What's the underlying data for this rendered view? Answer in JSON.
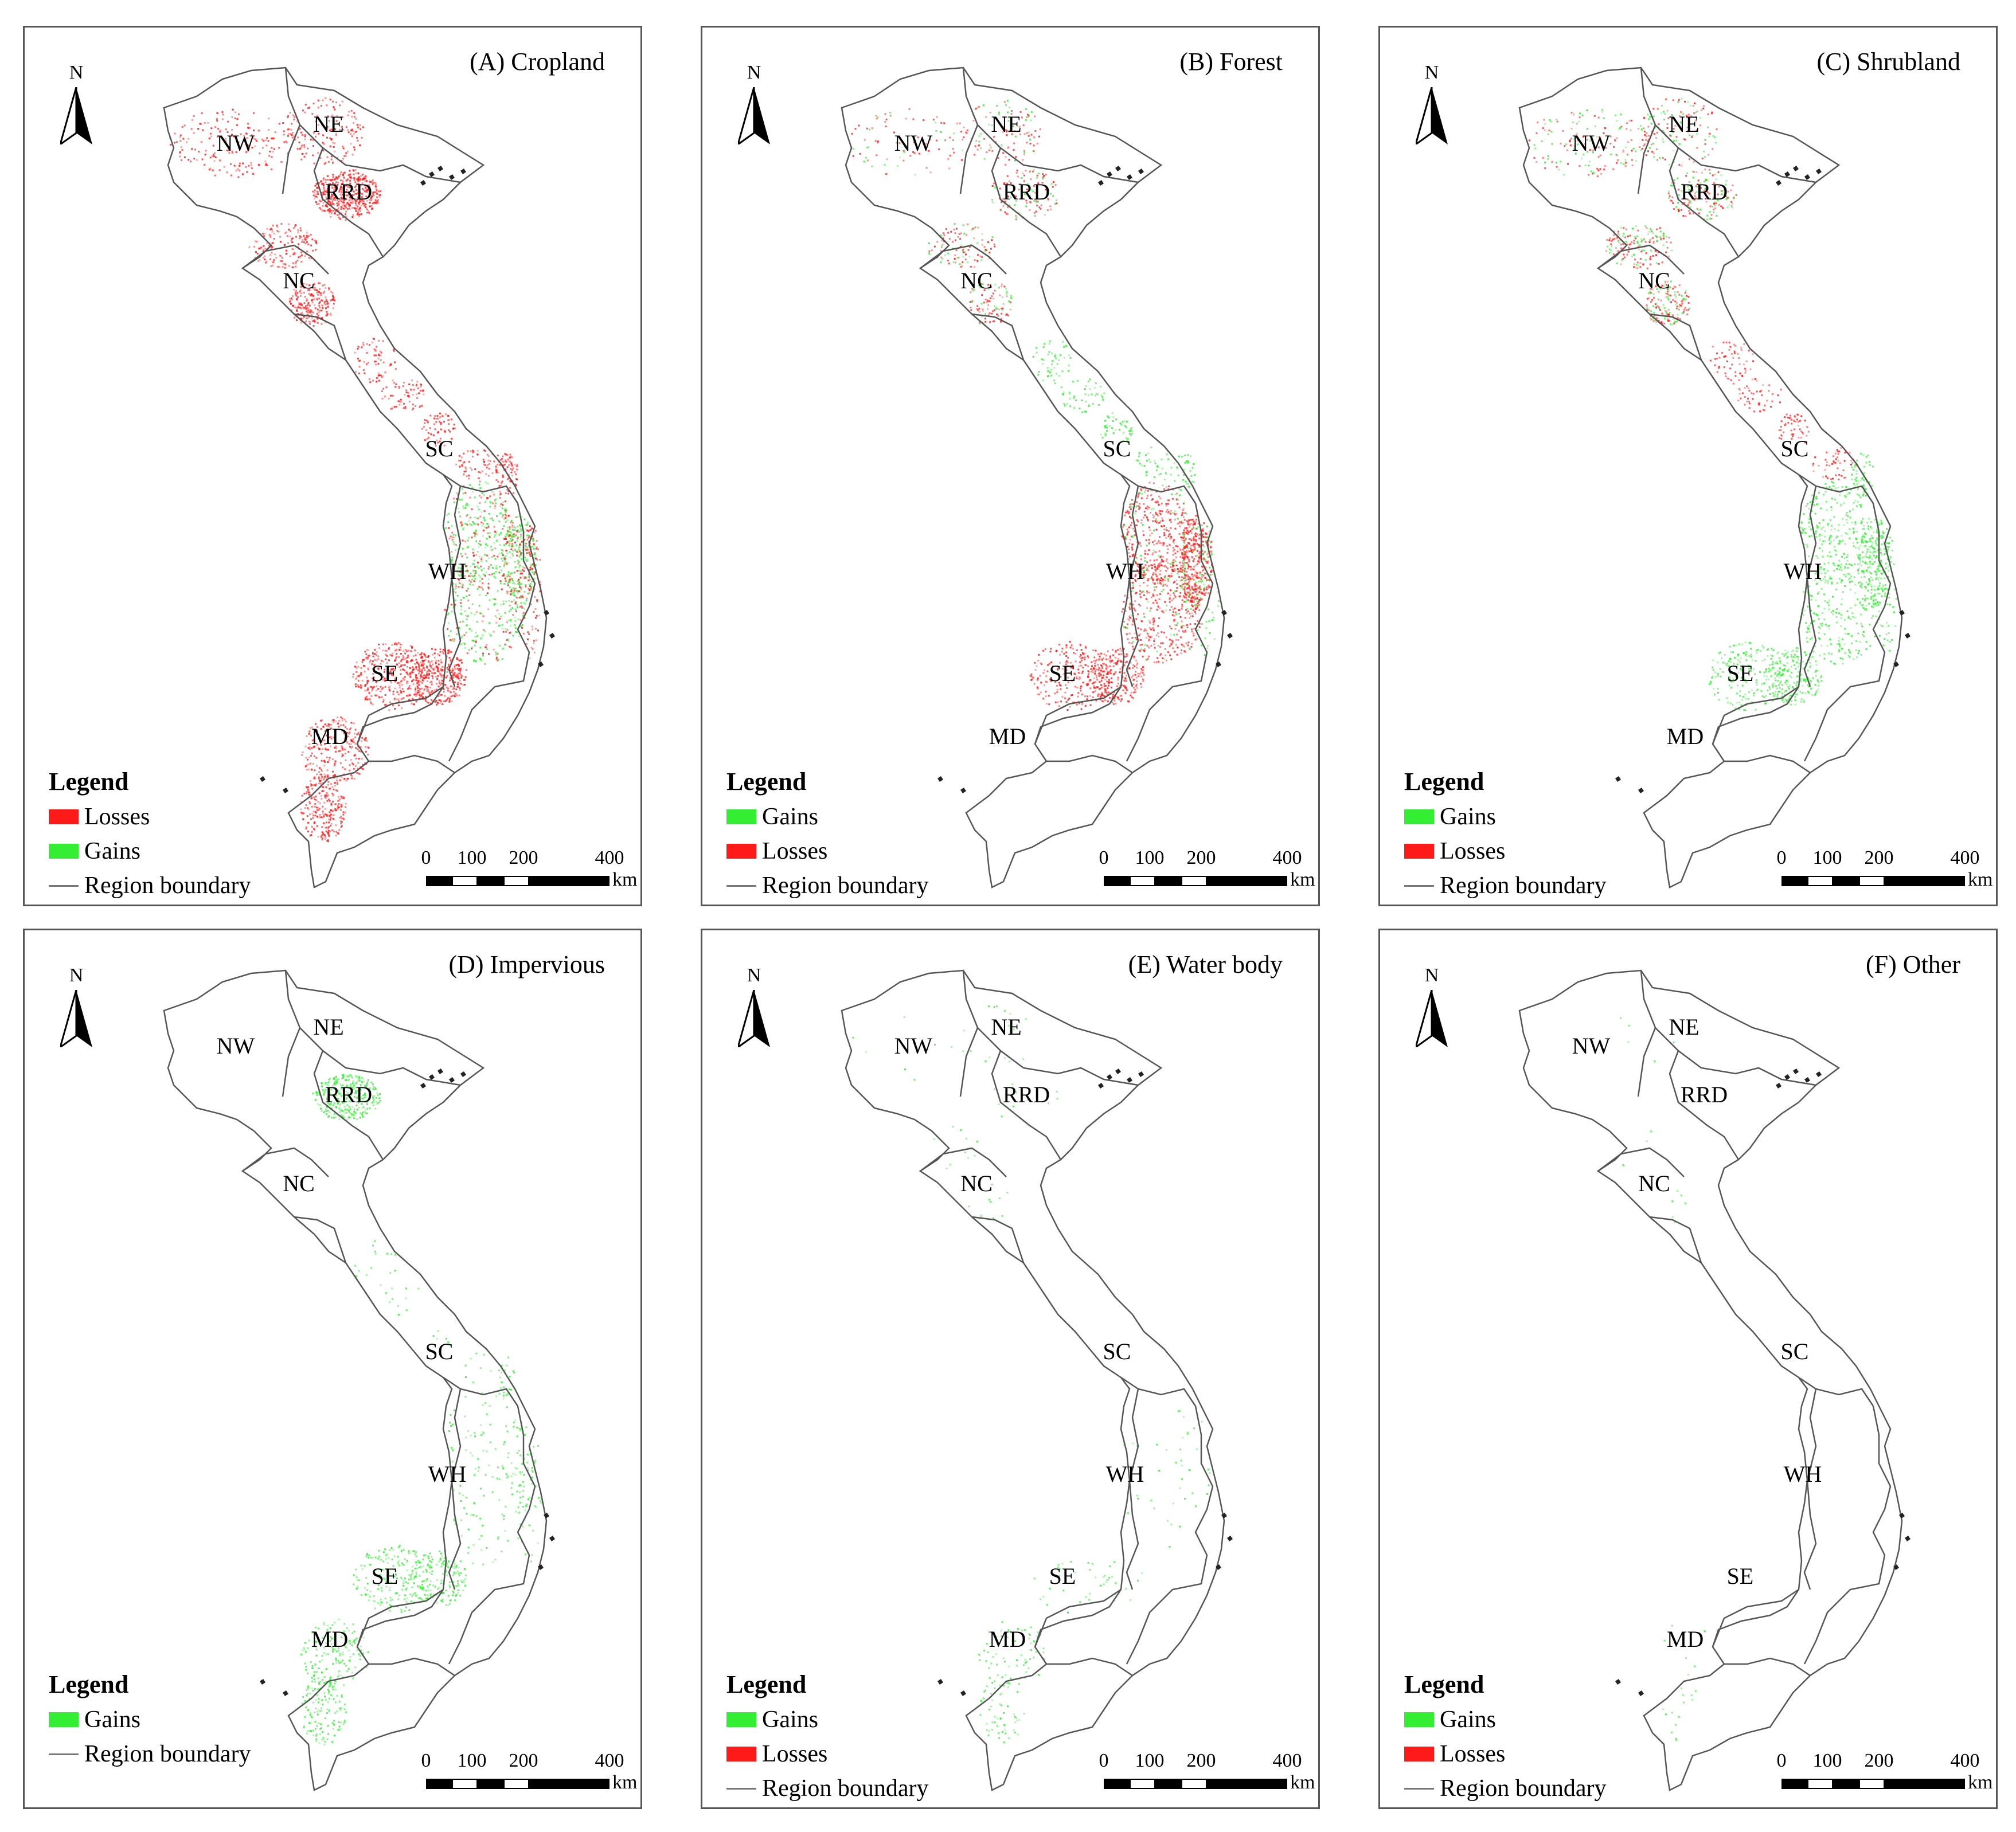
{
  "colors": {
    "gain": "#33ee33",
    "loss": "#ff1a1a",
    "boundary": "#555555"
  },
  "north_label": "N",
  "legend_title": "Legend",
  "labels": {
    "gains": "Gains",
    "losses": "Losses",
    "boundary": "Region boundary"
  },
  "scale": {
    "ticks": [
      "0",
      "100",
      "200",
      "400"
    ],
    "unit": "km"
  },
  "regions": [
    "NW",
    "NE",
    "RRD",
    "NC",
    "SC",
    "WH",
    "SE",
    "MD"
  ],
  "panels": [
    {
      "title": "(A) Cropland",
      "legend": [
        {
          "label": "Losses",
          "kind": "loss"
        },
        {
          "label": "Gains",
          "kind": "gain"
        },
        {
          "label": "Region boundary",
          "kind": "line"
        }
      ]
    },
    {
      "title": "(B) Forest",
      "legend": [
        {
          "label": "Gains",
          "kind": "gain"
        },
        {
          "label": "Losses",
          "kind": "loss"
        },
        {
          "label": "Region boundary",
          "kind": "line"
        }
      ]
    },
    {
      "title": "(C) Shrubland",
      "legend": [
        {
          "label": "Gains",
          "kind": "gain"
        },
        {
          "label": "Losses",
          "kind": "loss"
        },
        {
          "label": "Region boundary",
          "kind": "line"
        }
      ]
    },
    {
      "title": "(D) Impervious",
      "legend": [
        {
          "label": "Gains",
          "kind": "gain"
        },
        {
          "label": "Region boundary",
          "kind": "line"
        }
      ]
    },
    {
      "title": "(E) Water body",
      "legend": [
        {
          "label": "Gains",
          "kind": "gain"
        },
        {
          "label": "Losses",
          "kind": "loss"
        },
        {
          "label": "Region boundary",
          "kind": "line"
        }
      ]
    },
    {
      "title": "(F) Other",
      "legend": [
        {
          "label": "Gains",
          "kind": "gain"
        },
        {
          "label": "Losses",
          "kind": "loss"
        },
        {
          "label": "Region boundary",
          "kind": "line"
        }
      ]
    }
  ]
}
